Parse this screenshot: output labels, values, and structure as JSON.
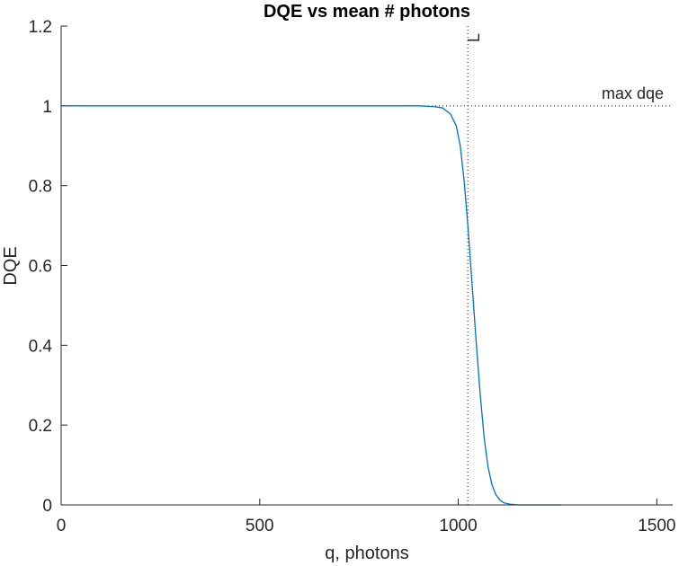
{
  "chart_data": {
    "type": "line",
    "title": "DQE vs mean # photons",
    "xlabel": "q, photons",
    "ylabel": "DQE",
    "xlim": [
      0,
      1540
    ],
    "ylim": [
      0,
      1.2
    ],
    "xticks": [
      0,
      500,
      1000,
      1500
    ],
    "xtick_labels": [
      "0",
      "500",
      "1000",
      "1500"
    ],
    "yticks": [
      0,
      0.2,
      0.4,
      0.6,
      0.8,
      1,
      1.2
    ],
    "ytick_labels": [
      "0",
      "0.2",
      "0.4",
      "0.6",
      "0.8",
      "1",
      "1.2"
    ],
    "grid": false,
    "series": [
      {
        "color": "#0072BD",
        "x": [
          0,
          900,
          940,
          960,
          980,
          995,
          1005,
          1015,
          1025,
          1035,
          1045,
          1055,
          1065,
          1075,
          1085,
          1095,
          1105,
          1115,
          1130,
          1150,
          1200,
          1260
        ],
        "y": [
          1.0,
          1.0,
          0.998,
          0.995,
          0.98,
          0.95,
          0.9,
          0.81,
          0.69,
          0.55,
          0.41,
          0.28,
          0.17,
          0.095,
          0.05,
          0.025,
          0.012,
          0.005,
          0.002,
          0.0,
          0.0,
          0.0
        ]
      }
    ],
    "reference_lines": [
      {
        "orientation": "horizontal",
        "value": 1,
        "label": "max dqe",
        "style": "dotted",
        "color": "#262626"
      },
      {
        "orientation": "vertical",
        "value": 1024,
        "label": "L",
        "style": "dotted",
        "color": "#262626"
      }
    ]
  }
}
